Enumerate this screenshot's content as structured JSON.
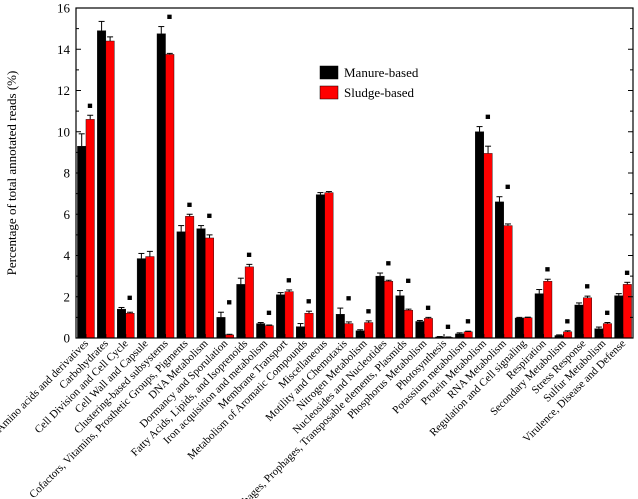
{
  "chart_data": {
    "type": "bar",
    "title": "",
    "xlabel": "",
    "ylabel": "Percentage of total annotated reads (%)",
    "ylim": [
      0,
      16
    ],
    "yticks": [
      0,
      2,
      4,
      6,
      8,
      10,
      12,
      14,
      16
    ],
    "grid": false,
    "legend_position": "top-center",
    "significance_marker": "■",
    "categories": [
      "Amino acids and derivatives",
      "Carbohydrates",
      "Cell Division and Cell Cycle",
      "Cell Wall and Capsule",
      "Clustering-based subsystems",
      "Cofactors, Vitamins, Prosthetic Groups, Pigments",
      "DNA Metabolism",
      "Dormancy and Sporulation",
      "Fatty Acids, Lipids, and Isoprenoids",
      "Iron acquisition and metabolism",
      "Membrane Transport",
      "Metabolism of Aromatic Compounds",
      "Miscellaneous",
      "Motility and Chemotaxis",
      "Nitrogen Metabolism",
      "Nucleosides and Nucleotides",
      "Phages, Prophages, Transposable elements, Plasmids",
      "Phosphorus Metabolism",
      "Photosynthesis",
      "Potassium metabolism",
      "Protein Metabolism",
      "RNA Metabolism",
      "Regulation and Cell signaling",
      "Respiration",
      "Secondary Metabolism",
      "Stress Response",
      "Sulfur Metabolism",
      "Virulence, Disease and Defense"
    ],
    "series": [
      {
        "name": "Manure-based",
        "color": "#000000",
        "values": [
          9.3,
          14.9,
          1.4,
          3.85,
          14.75,
          5.15,
          5.3,
          1.0,
          2.6,
          0.7,
          2.1,
          0.55,
          6.95,
          1.15,
          0.35,
          3.0,
          2.05,
          0.8,
          0.05,
          0.2,
          10.0,
          6.6,
          0.97,
          2.15,
          0.12,
          1.6,
          0.45,
          2.05
        ],
        "errors": [
          0.6,
          0.45,
          0.08,
          0.25,
          0.35,
          0.3,
          0.15,
          0.25,
          0.3,
          0.05,
          0.1,
          0.15,
          0.1,
          0.3,
          0.05,
          0.15,
          0.25,
          0.05,
          0.02,
          0.05,
          0.25,
          0.25,
          0.03,
          0.2,
          0.03,
          0.1,
          0.08,
          0.1
        ]
      },
      {
        "name": "Sludge-based",
        "color": "#ff0000",
        "values": [
          10.6,
          14.4,
          1.2,
          3.95,
          13.75,
          5.9,
          4.85,
          0.15,
          3.45,
          0.6,
          2.25,
          1.2,
          7.05,
          0.7,
          0.75,
          2.75,
          1.35,
          0.95,
          0.03,
          0.3,
          8.95,
          5.45,
          0.98,
          2.75,
          0.3,
          1.95,
          0.7,
          2.6
        ],
        "errors": [
          0.2,
          0.2,
          0.05,
          0.25,
          0.05,
          0.1,
          0.15,
          0.03,
          0.12,
          0.03,
          0.08,
          0.1,
          0.05,
          0.08,
          0.08,
          0.05,
          0.05,
          0.05,
          0.02,
          0.03,
          0.35,
          0.08,
          0.03,
          0.1,
          0.05,
          0.08,
          0.05,
          0.1
        ]
      }
    ],
    "significant": [
      true,
      false,
      true,
      false,
      true,
      true,
      true,
      true,
      true,
      true,
      true,
      true,
      false,
      true,
      true,
      true,
      true,
      true,
      true,
      true,
      true,
      true,
      false,
      true,
      true,
      true,
      true,
      true
    ]
  }
}
